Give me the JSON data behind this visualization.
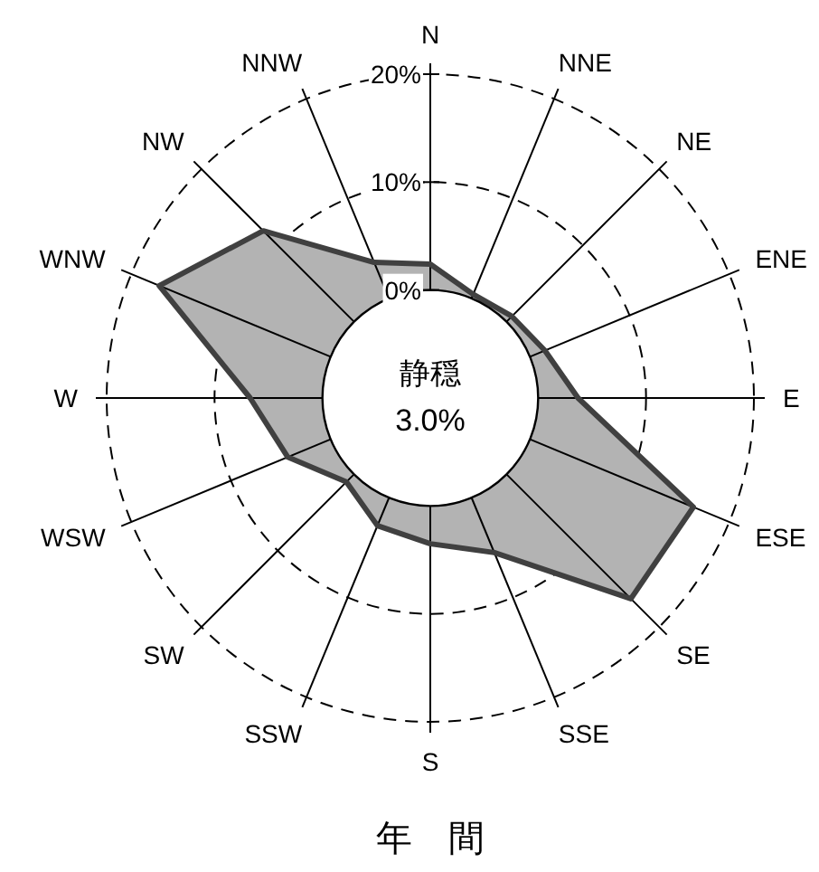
{
  "chart_data": {
    "type": "radar",
    "title": "年　間",
    "annotations": [
      "静穏",
      "3.0%"
    ],
    "categories": [
      "N",
      "NNE",
      "NE",
      "ENE",
      "E",
      "ESE",
      "SE",
      "SSE",
      "S",
      "SSW",
      "SW",
      "WSW",
      "W",
      "WNW",
      "NW",
      "NNW"
    ],
    "ylim": [
      -10,
      20
    ],
    "yticks": [
      {
        "value": 0,
        "label": "0%"
      },
      {
        "value": 10,
        "label": "10%"
      },
      {
        "value": 20,
        "label": "20%"
      }
    ],
    "grid": true,
    "series": [
      {
        "color": "#b3b3b3",
        "values": [
          2.4,
          0.4,
          0.7,
          1.5,
          3.7,
          16.4,
          16.3,
          5.5,
          3.5,
          2.8,
          1.0,
          4.3,
          6.7,
          17.2,
          11.9,
          3.6
        ]
      }
    ]
  }
}
